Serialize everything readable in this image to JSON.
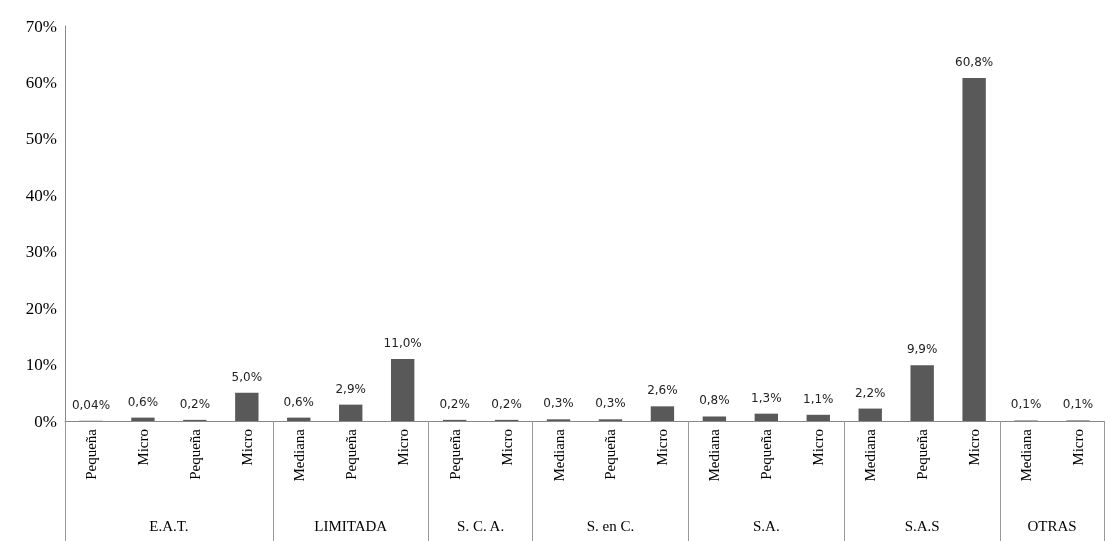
{
  "chart_data": {
    "type": "bar",
    "categories": [
      "Pequeña",
      "Micro",
      "Pequeña",
      "Micro",
      "Mediana",
      "Pequeña",
      "Micro",
      "Pequeña",
      "Micro",
      "Mediana",
      "Pequeña",
      "Micro",
      "Mediana",
      "Pequeña",
      "Micro",
      "Mediana",
      "Pequeña",
      "Micro",
      "Mediana",
      "Micro"
    ],
    "values": [
      0.04,
      0.6,
      0.2,
      5.0,
      0.6,
      2.9,
      11.0,
      0.2,
      0.2,
      0.3,
      0.3,
      2.6,
      0.8,
      1.3,
      1.1,
      2.2,
      9.9,
      60.8,
      0.1,
      0.1
    ],
    "value_labels": [
      "0,04%",
      "0,6%",
      "0,2%",
      "5,0%",
      "0,6%",
      "2,9%",
      "11,0%",
      "0,2%",
      "0,2%",
      "0,3%",
      "0,3%",
      "2,6%",
      "0,8%",
      "1,3%",
      "1,1%",
      "2,2%",
      "9,9%",
      "60,8%",
      "0,1%",
      "0,1%"
    ],
    "color": "#595959",
    "ylim": [
      0,
      70
    ],
    "yticks": [
      {
        "value": 0,
        "label": "0%"
      },
      {
        "value": 10,
        "label": "10%"
      },
      {
        "value": 20,
        "label": "20%"
      },
      {
        "value": 30,
        "label": "30%"
      },
      {
        "value": 40,
        "label": "40%"
      },
      {
        "value": 50,
        "label": "50%"
      },
      {
        "value": 60,
        "label": "60%"
      },
      {
        "value": 70,
        "label": "70%"
      }
    ],
    "annotations": [
      "E.A.T.",
      "LIMITADA",
      "S. C. A.",
      "S. en C.",
      "S.A.",
      "S.A.S",
      "OTRAS"
    ]
  }
}
